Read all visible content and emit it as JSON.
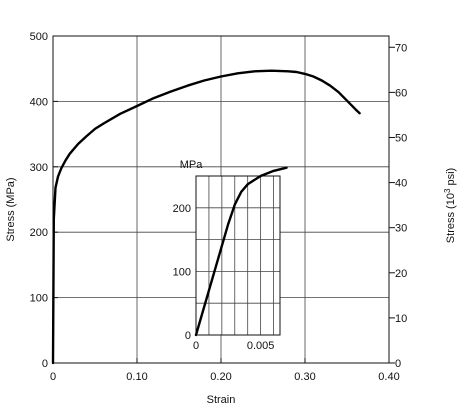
{
  "chart_data": [
    {
      "type": "line",
      "xlabel": "Strain",
      "ylabel": "Stress (MPa)",
      "y2label_prefix": "Stress (10",
      "y2label_exp": "3",
      "y2label_suffix": " psi)",
      "xlim": [
        0,
        0.4
      ],
      "ylim": [
        0,
        500
      ],
      "y2lim": [
        0,
        72.5
      ],
      "x_ticks": [
        0,
        0.1,
        0.2,
        0.3,
        0.4
      ],
      "x_tick_labels": [
        "0",
        "0.10",
        "0.20",
        "0.30",
        "0.40"
      ],
      "y_ticks": [
        0,
        100,
        200,
        300,
        400,
        500
      ],
      "y_tick_labels": [
        "0",
        "100",
        "200",
        "300",
        "400",
        "500"
      ],
      "y2_ticks": [
        0,
        10,
        20,
        30,
        40,
        50,
        60,
        70
      ],
      "y2_tick_labels": [
        "0",
        "10",
        "20",
        "30",
        "40",
        "50",
        "60",
        "70"
      ],
      "grid": true,
      "series": [
        {
          "x": [
            0,
            0.001,
            0.003,
            0.006,
            0.01,
            0.015,
            0.02,
            0.03,
            0.04,
            0.05,
            0.06,
            0.08,
            0.1,
            0.12,
            0.14,
            0.16,
            0.18,
            0.2,
            0.22,
            0.24,
            0.26,
            0.28,
            0.29,
            0.3,
            0.31,
            0.32,
            0.33,
            0.34,
            0.35,
            0.36,
            0.365
          ],
          "y": [
            0,
            220,
            268,
            285,
            298,
            310,
            320,
            335,
            347,
            358,
            366,
            381,
            393,
            405,
            415,
            424,
            432,
            438,
            443,
            446,
            447,
            446,
            445,
            442,
            438,
            432,
            424,
            414,
            401,
            388,
            382
          ]
        }
      ]
    },
    {
      "type": "line",
      "ylabel": "MPa",
      "xlim": [
        0,
        0.0065
      ],
      "ylim": [
        0,
        250
      ],
      "x_ticks": [
        0,
        0.005
      ],
      "x_tick_labels": [
        "0",
        "0.005"
      ],
      "y_ticks": [
        0,
        100,
        200
      ],
      "y_tick_labels": [
        "0",
        "100",
        "200"
      ],
      "grid": true,
      "series": [
        {
          "x": [
            0,
            0.0025,
            0.003,
            0.0035,
            0.004,
            0.005,
            0.006,
            0.007
          ],
          "y": [
            0,
            175,
            205,
            225,
            237,
            250,
            258,
            263
          ]
        }
      ]
    }
  ]
}
